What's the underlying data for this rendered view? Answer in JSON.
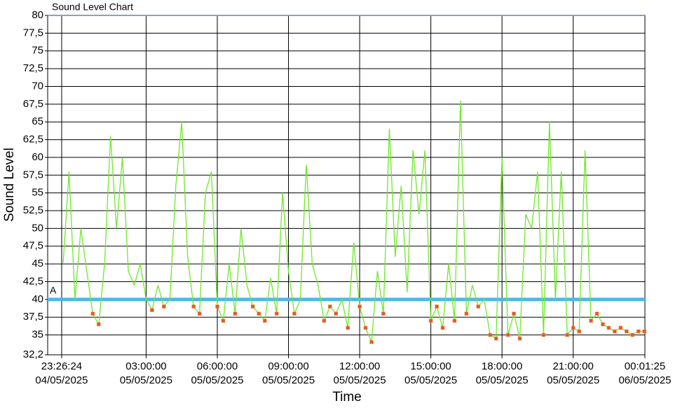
{
  "chart_data": {
    "type": "line",
    "title": "Sound Level Chart",
    "x_label": "Time",
    "y_label": "Sound Level",
    "xlim": [
      "2025-05-04T22:51:00",
      "2025-05-06T00:01:25"
    ],
    "xticks": [
      {
        "value": "2025-05-04T23:26:24",
        "label": [
          "23:26:24",
          "04/05/2025"
        ]
      },
      {
        "value": "2025-05-05T03:00:00",
        "label": [
          "03:00:00",
          "05/05/2025"
        ]
      },
      {
        "value": "2025-05-05T06:00:00",
        "label": [
          "06:00:00",
          "05/05/2025"
        ]
      },
      {
        "value": "2025-05-05T09:00:00",
        "label": [
          "09:00:00",
          "05/05/2025"
        ]
      },
      {
        "value": "2025-05-05T12:00:00",
        "label": [
          "12:00:00",
          "05/05/2025"
        ]
      },
      {
        "value": "2025-05-05T15:00:00",
        "label": [
          "15:00:00",
          "05/05/2025"
        ]
      },
      {
        "value": "2025-05-05T18:00:00",
        "label": [
          "18:00:00",
          "05/05/2025"
        ]
      },
      {
        "value": "2025-05-05T21:00:00",
        "label": [
          "21:00:00",
          "05/05/2025"
        ]
      },
      {
        "value": "2025-05-06T00:01:25",
        "label": [
          "00:01:25",
          "06/05/2025"
        ]
      }
    ],
    "ylim": [
      32.2,
      80
    ],
    "yticks": [
      {
        "value": 32.2,
        "label": "32,2"
      },
      35,
      {
        "value": 37.5,
        "label": "37,5"
      },
      40,
      {
        "value": 42.5,
        "label": "42,5"
      },
      45,
      {
        "value": 47.5,
        "label": "47,5"
      },
      50,
      {
        "value": 52.5,
        "label": "52,5"
      },
      55,
      {
        "value": 57.5,
        "label": "57,5"
      },
      60,
      {
        "value": 62.5,
        "label": "62,5"
      },
      65,
      {
        "value": 67.5,
        "label": "67,5"
      },
      70,
      {
        "value": 72.5,
        "label": "72,5"
      },
      75,
      {
        "value": 77.5,
        "label": "77,5"
      },
      80
    ],
    "grid": true,
    "threshold": {
      "value": 40,
      "label": "A",
      "color": "#4fb6ea"
    },
    "marker_color": "#e2553a",
    "x": [
      "2025-05-04T23:30",
      "2025-05-04T23:45",
      "2025-05-05T00:00",
      "2025-05-05T00:15",
      "2025-05-05T00:30",
      "2025-05-05T00:45",
      "2025-05-05T01:00",
      "2025-05-05T01:15",
      "2025-05-05T01:30",
      "2025-05-05T01:45",
      "2025-05-05T02:00",
      "2025-05-05T02:15",
      "2025-05-05T02:30",
      "2025-05-05T02:45",
      "2025-05-05T03:00",
      "2025-05-05T03:15",
      "2025-05-05T03:30",
      "2025-05-05T03:45",
      "2025-05-05T04:00",
      "2025-05-05T04:15",
      "2025-05-05T04:30",
      "2025-05-05T04:45",
      "2025-05-05T05:00",
      "2025-05-05T05:15",
      "2025-05-05T05:30",
      "2025-05-05T05:45",
      "2025-05-05T06:00",
      "2025-05-05T06:15",
      "2025-05-05T06:30",
      "2025-05-05T06:45",
      "2025-05-05T07:00",
      "2025-05-05T07:15",
      "2025-05-05T07:30",
      "2025-05-05T07:45",
      "2025-05-05T08:00",
      "2025-05-05T08:15",
      "2025-05-05T08:30",
      "2025-05-05T08:45",
      "2025-05-05T09:00",
      "2025-05-05T09:15",
      "2025-05-05T09:30",
      "2025-05-05T09:45",
      "2025-05-05T10:00",
      "2025-05-05T10:15",
      "2025-05-05T10:30",
      "2025-05-05T10:45",
      "2025-05-05T11:00",
      "2025-05-05T11:15",
      "2025-05-05T11:30",
      "2025-05-05T11:45",
      "2025-05-05T12:00",
      "2025-05-05T12:15",
      "2025-05-05T12:30",
      "2025-05-05T12:45",
      "2025-05-05T13:00",
      "2025-05-05T13:15",
      "2025-05-05T13:30",
      "2025-05-05T13:45",
      "2025-05-05T14:00",
      "2025-05-05T14:15",
      "2025-05-05T14:30",
      "2025-05-05T14:45",
      "2025-05-05T15:00",
      "2025-05-05T15:15",
      "2025-05-05T15:30",
      "2025-05-05T15:45",
      "2025-05-05T16:00",
      "2025-05-05T16:15",
      "2025-05-05T16:30",
      "2025-05-05T16:45",
      "2025-05-05T17:00",
      "2025-05-05T17:15",
      "2025-05-05T17:30",
      "2025-05-05T17:45",
      "2025-05-05T18:00",
      "2025-05-05T18:15",
      "2025-05-05T18:30",
      "2025-05-05T18:45",
      "2025-05-05T19:00",
      "2025-05-05T19:15",
      "2025-05-05T19:30",
      "2025-05-05T19:45",
      "2025-05-05T20:00",
      "2025-05-05T20:15",
      "2025-05-05T20:30",
      "2025-05-05T20:45",
      "2025-05-05T21:00",
      "2025-05-05T21:15",
      "2025-05-05T21:30",
      "2025-05-05T21:45",
      "2025-05-05T22:00",
      "2025-05-05T22:15",
      "2025-05-05T22:30",
      "2025-05-05T22:45",
      "2025-05-05T23:00",
      "2025-05-05T23:15",
      "2025-05-05T23:30",
      "2025-05-05T23:45",
      "2025-05-06T00:00"
    ],
    "series": [
      {
        "name": "Sound Level",
        "color": "#6ee82a",
        "values": [
          45,
          58,
          40,
          50,
          44,
          38,
          36.5,
          45,
          63,
          50,
          60,
          44,
          42,
          45,
          40,
          38.5,
          42,
          39,
          40,
          56,
          65,
          46,
          39,
          38,
          55,
          58,
          39,
          37,
          45,
          38,
          50,
          42,
          39,
          38,
          37,
          43,
          38,
          55,
          44,
          38,
          40,
          59,
          45,
          42,
          37,
          39,
          38,
          40,
          36,
          48,
          39,
          36,
          34,
          44,
          38,
          64,
          46,
          56,
          41,
          61,
          52,
          61,
          37,
          39,
          36,
          45,
          37,
          68,
          38,
          42,
          39,
          40,
          35,
          34.5,
          60,
          35,
          38,
          34.5,
          52,
          50,
          58,
          35,
          65,
          40,
          58,
          35,
          36,
          35.5,
          61,
          37,
          38,
          36.5,
          36,
          35.5,
          36,
          35.5,
          35,
          35.5,
          35.5
        ]
      }
    ]
  }
}
